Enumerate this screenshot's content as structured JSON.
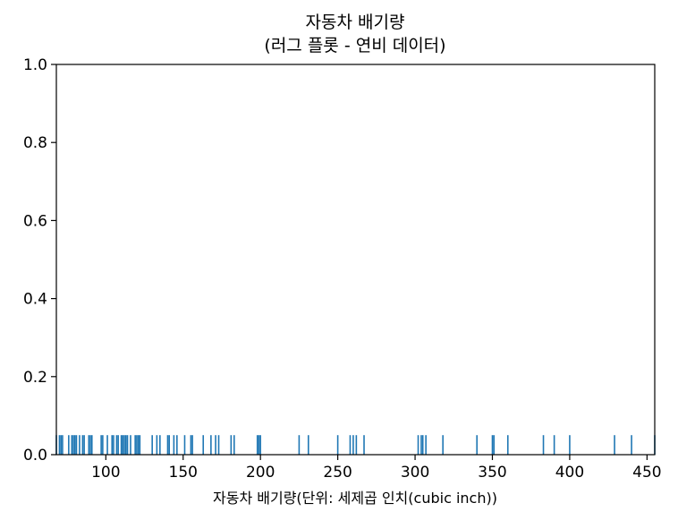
{
  "chart_data": {
    "type": "rug",
    "title": "자동차 배기량",
    "subtitle": "(러그 플롯 - 연비 데이터)",
    "xlabel": "자동차 배기량(단위: 세제곱 인치(cubic inch))",
    "ylabel": "",
    "xlim": [
      68,
      455
    ],
    "ylim": [
      0,
      1.0
    ],
    "x_ticks": [
      100,
      150,
      200,
      250,
      300,
      350,
      400,
      450
    ],
    "y_ticks": [
      0.0,
      0.2,
      0.4,
      0.6,
      0.8,
      1.0
    ],
    "x_tick_labels": [
      "100",
      "150",
      "200",
      "250",
      "300",
      "350",
      "400",
      "450"
    ],
    "y_tick_labels": [
      "0.0",
      "0.2",
      "0.4",
      "0.6",
      "0.8",
      "1.0"
    ],
    "rug_height": 0.05,
    "color": "#1f77b4",
    "grid": false,
    "values": [
      68,
      70,
      71,
      72,
      76,
      78,
      79,
      80,
      81,
      83,
      85,
      86,
      89,
      90,
      91,
      97,
      98,
      101,
      104,
      105,
      107,
      108,
      110,
      111,
      112,
      113,
      114,
      116,
      119,
      120,
      121,
      122,
      130,
      133,
      135,
      140,
      141,
      144,
      146,
      151,
      155,
      156,
      163,
      168,
      171,
      173,
      181,
      183,
      198,
      199,
      200,
      225,
      231,
      250,
      258,
      260,
      262,
      267,
      302,
      304,
      305,
      307,
      318,
      340,
      350,
      351,
      360,
      383,
      390,
      400,
      429,
      440,
      455
    ]
  }
}
